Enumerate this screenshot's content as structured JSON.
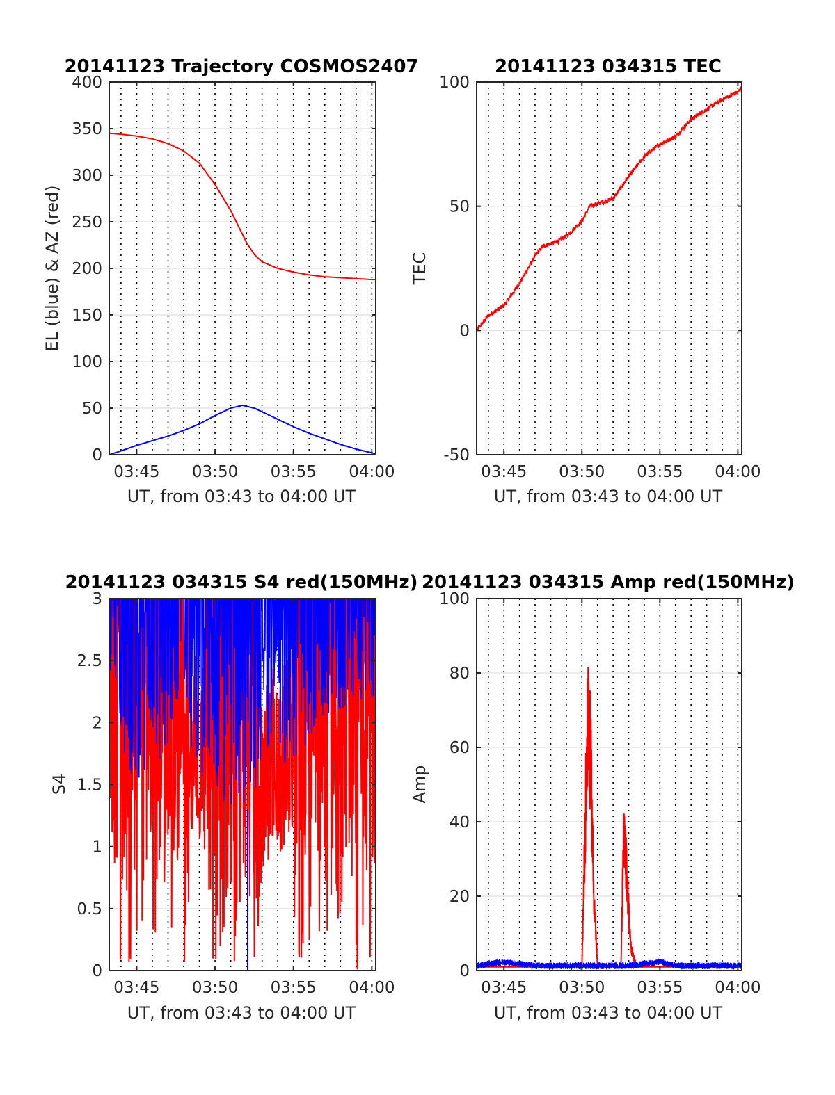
{
  "figure": {
    "colors": {
      "el": "#0000ff",
      "az": "#ff0000",
      "amp_red": "#ff0000",
      "amp_blue": "#0000ff",
      "grid": "#000000",
      "axis": "#262626"
    }
  },
  "chart_data": [
    {
      "type": "line",
      "title": "20141123 Trajectory COSMOS2407",
      "xlabel": "UT, from 03:43 to 04:00 UT",
      "ylabel": "EL (blue) & AZ (red)",
      "xlim": [
        "03:43:15",
        "04:00:15"
      ],
      "ylim": [
        0,
        400
      ],
      "xticks": [
        "03:45",
        "03:50",
        "03:55",
        "04:00"
      ],
      "yticks": [
        "0",
        "50",
        "100",
        "150",
        "200",
        "250",
        "300",
        "350",
        "400"
      ],
      "grid": "vertical dotted every minute, horizontal light at y ticks",
      "series": [
        {
          "color": "#ff0000",
          "x": [
            "03:43:15",
            "03:44:00",
            "03:45:00",
            "03:46:00",
            "03:47:00",
            "03:48:00",
            "03:49:00",
            "03:50:00",
            "03:51:00",
            "03:51:30",
            "03:52:00",
            "03:52:30",
            "03:53:00",
            "03:54:00",
            "03:55:00",
            "03:56:00",
            "03:57:00",
            "03:58:00",
            "03:59:00",
            "04:00:00",
            "04:00:15"
          ],
          "values": [
            345,
            344,
            342,
            339,
            334,
            326,
            313,
            290,
            262,
            245,
            228,
            215,
            207,
            200,
            196,
            193,
            191,
            190,
            189,
            188,
            188
          ]
        },
        {
          "color": "#0000ff",
          "x": [
            "03:43:15",
            "03:44:00",
            "03:45:00",
            "03:46:00",
            "03:47:00",
            "03:48:00",
            "03:49:00",
            "03:50:00",
            "03:51:00",
            "03:51:45",
            "03:52:30",
            "03:53:00",
            "03:54:00",
            "03:55:00",
            "03:56:00",
            "03:57:00",
            "03:58:00",
            "03:59:00",
            "04:00:00",
            "04:00:15"
          ],
          "values": [
            0,
            4,
            10,
            15,
            20,
            26,
            33,
            42,
            50,
            53,
            50,
            46,
            38,
            30,
            23,
            17,
            11,
            6,
            2,
            1
          ]
        }
      ]
    },
    {
      "type": "line",
      "title": "20141123 034315 TEC",
      "xlabel": "UT, from 03:43 to 04:00 UT",
      "ylabel": "TEC",
      "xlim": [
        "03:43:15",
        "04:00:15"
      ],
      "ylim": [
        -50,
        100
      ],
      "xticks": [
        "03:45",
        "03:50",
        "03:55",
        "04:00"
      ],
      "yticks": [
        "-50",
        "0",
        "50",
        "100"
      ],
      "series": [
        {
          "color": "#ff0000",
          "x": [
            "03:43:15",
            "03:44:00",
            "03:45:00",
            "03:46:00",
            "03:47:00",
            "03:47:30",
            "03:48:00",
            "03:48:30",
            "03:49:00",
            "03:50:00",
            "03:50:30",
            "03:51:00",
            "03:52:00",
            "03:53:00",
            "03:54:00",
            "03:55:00",
            "03:56:00",
            "03:57:00",
            "03:58:00",
            "03:59:00",
            "04:00:00",
            "04:00:15"
          ],
          "values": [
            0,
            6,
            10,
            19,
            30,
            34,
            35,
            36,
            38,
            44,
            50,
            51,
            53,
            62,
            70,
            75,
            78,
            85,
            89,
            93,
            96,
            98
          ]
        }
      ]
    },
    {
      "type": "line",
      "title": "20141123 034315 S4 red(150MHz)",
      "xlabel": "UT, from 03:43 to 04:00 UT",
      "ylabel": "S4",
      "xlim": [
        "03:43:15",
        "04:00:15"
      ],
      "ylim": [
        0,
        3
      ],
      "xticks": [
        "03:45",
        "03:50",
        "03:55",
        "04:00"
      ],
      "yticks": [
        "0",
        "0.5",
        "1",
        "1.5",
        "2",
        "2.5",
        "3"
      ],
      "series": [
        {
          "color": "#ff0000",
          "x": [
            "03:43:15",
            "03:45:00",
            "03:47:00",
            "03:48:00",
            "03:49:00",
            "03:50:00",
            "03:51:00",
            "03:52:00",
            "03:53:00",
            "03:54:00",
            "03:55:00",
            "03:57:00",
            "04:00:15"
          ],
          "values": [
            1.5,
            1.3,
            1.5,
            1.6,
            1.4,
            1.0,
            1.0,
            1.2,
            1.1,
            1.3,
            1.5,
            1.5,
            1.5
          ]
        },
        {
          "color": "#0000ff",
          "x": [
            "03:43:15",
            "03:45:00",
            "03:47:00",
            "03:48:00",
            "03:49:00",
            "03:50:00",
            "03:51:00",
            "03:52:00",
            "03:53:00",
            "03:54:00",
            "03:55:00",
            "03:57:00",
            "04:00:15"
          ],
          "values": [
            2.2,
            1.4,
            1.8,
            2.0,
            1.6,
            1.4,
            1.2,
            1.3,
            1.6,
            1.9,
            1.4,
            2.0,
            2.2
          ]
        }
      ]
    },
    {
      "type": "line",
      "title": "20141123 034315 Amp red(150MHz)",
      "xlabel": "UT, from 03:43 to 04:00 UT",
      "ylabel": "Amp",
      "xlim": [
        "03:43:15",
        "04:00:15"
      ],
      "ylim": [
        0,
        100
      ],
      "xticks": [
        "03:45",
        "03:50",
        "03:55",
        "04:00"
      ],
      "yticks": [
        "0",
        "20",
        "40",
        "60",
        "80",
        "100"
      ],
      "series": [
        {
          "color": "#ff0000",
          "x": [
            "03:43:15",
            "03:50:00",
            "03:50:15",
            "03:50:25",
            "03:50:35",
            "03:50:45",
            "03:51:00",
            "03:52:30",
            "03:52:40",
            "03:52:50",
            "03:53:00",
            "03:53:10",
            "03:53:30",
            "04:00:15"
          ],
          "values": [
            1,
            1,
            60,
            91,
            67,
            29,
            1,
            1,
            45,
            37,
            20,
            8,
            1,
            1
          ]
        },
        {
          "color": "#0000ff",
          "x": [
            "03:43:15",
            "03:45:00",
            "03:47:00",
            "03:49:00",
            "03:51:00",
            "03:53:00",
            "03:55:00",
            "03:56:00",
            "03:58:00",
            "04:00:15"
          ],
          "values": [
            1,
            2,
            1,
            1,
            1,
            1,
            2,
            1,
            1,
            1
          ]
        }
      ]
    }
  ]
}
